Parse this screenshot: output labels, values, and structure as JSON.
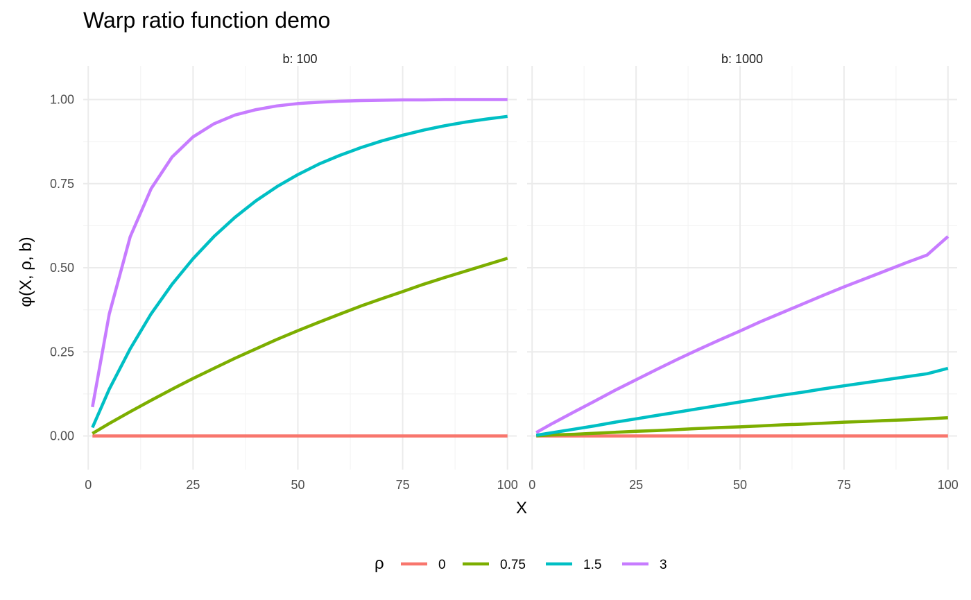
{
  "chart_data": {
    "type": "line",
    "title": "Warp ratio function demo",
    "xlabel": "X",
    "ylabel": "φ(X, ρ, b)",
    "xlim": [
      -1.2,
      102.2
    ],
    "ylim": [
      -0.1,
      1.1
    ],
    "x_ticks": [
      "0",
      "25",
      "50",
      "75",
      "100"
    ],
    "y_ticks": [
      "0.00",
      "0.25",
      "0.50",
      "0.75",
      "1.00"
    ],
    "x_tick_values": [
      0,
      25,
      50,
      75,
      100
    ],
    "y_tick_values": [
      0,
      0.25,
      0.5,
      0.75,
      1.0
    ],
    "x_minor_values": [
      12.5,
      37.5,
      62.5,
      87.5
    ],
    "y_minor_values": [
      0.125,
      0.375,
      0.625,
      0.875
    ],
    "grid": true,
    "legend": {
      "title": "ρ",
      "position": "bottom",
      "entries": [
        "0",
        "0.75",
        "1.5",
        "3"
      ]
    },
    "colors": {
      "0": "#F8766D",
      "0.75": "#7CAE00",
      "1.5": "#00BFC4",
      "3": "#C77CFF"
    },
    "x": [
      1,
      5,
      10,
      15,
      20,
      25,
      30,
      35,
      40,
      45,
      50,
      55,
      60,
      65,
      70,
      75,
      80,
      85,
      90,
      95,
      100
    ],
    "facets": [
      {
        "label": "b: 100",
        "series": [
          {
            "name": "0",
            "values": [
              0,
              0,
              0,
              0,
              0,
              0,
              0,
              0,
              0,
              0,
              0,
              0,
              0,
              0,
              0,
              0,
              0,
              0,
              0,
              0,
              0
            ]
          },
          {
            "name": "0.75",
            "values": [
              0.0075,
              0.037,
              0.072,
              0.106,
              0.139,
              0.171,
              0.201,
              0.231,
              0.259,
              0.287,
              0.313,
              0.338,
              0.362,
              0.386,
              0.408,
              0.429,
              0.451,
              0.471,
              0.49,
              0.509,
              0.528
            ]
          },
          {
            "name": "1.5",
            "values": [
              0.025,
              0.139,
              0.259,
              0.363,
              0.451,
              0.527,
              0.593,
              0.65,
              0.699,
              0.741,
              0.777,
              0.808,
              0.834,
              0.857,
              0.877,
              0.894,
              0.909,
              0.922,
              0.933,
              0.942,
              0.95
            ]
          },
          {
            "name": "3",
            "values": [
              0.086,
              0.362,
              0.592,
              0.735,
              0.829,
              0.889,
              0.928,
              0.954,
              0.97,
              0.981,
              0.988,
              0.992,
              0.995,
              0.997,
              0.998,
              0.999,
              0.999,
              1.0,
              1.0,
              1.0,
              1.0
            ]
          }
        ]
      },
      {
        "label": "b: 1000",
        "series": [
          {
            "name": "0",
            "values": [
              0,
              0,
              0,
              0,
              0,
              0,
              0,
              0,
              0,
              0,
              0,
              0,
              0,
              0,
              0,
              0,
              0,
              0,
              0,
              0,
              0
            ]
          },
          {
            "name": "0.75",
            "values": [
              0.0005,
              0.003,
              0.005,
              0.008,
              0.011,
              0.014,
              0.016,
              0.019,
              0.022,
              0.025,
              0.027,
              0.03,
              0.033,
              0.035,
              0.038,
              0.041,
              0.043,
              0.046,
              0.048,
              0.051,
              0.054
            ]
          },
          {
            "name": "1.5",
            "values": [
              0.002,
              0.01,
              0.02,
              0.03,
              0.041,
              0.051,
              0.061,
              0.071,
              0.081,
              0.091,
              0.101,
              0.111,
              0.121,
              0.13,
              0.14,
              0.149,
              0.158,
              0.167,
              0.176,
              0.185,
              0.201
            ]
          },
          {
            "name": "3",
            "values": [
              0.01,
              0.038,
              0.071,
              0.103,
              0.136,
              0.167,
              0.198,
              0.228,
              0.257,
              0.285,
              0.312,
              0.34,
              0.366,
              0.392,
              0.418,
              0.443,
              0.467,
              0.491,
              0.515,
              0.538,
              0.593
            ]
          }
        ]
      }
    ]
  }
}
